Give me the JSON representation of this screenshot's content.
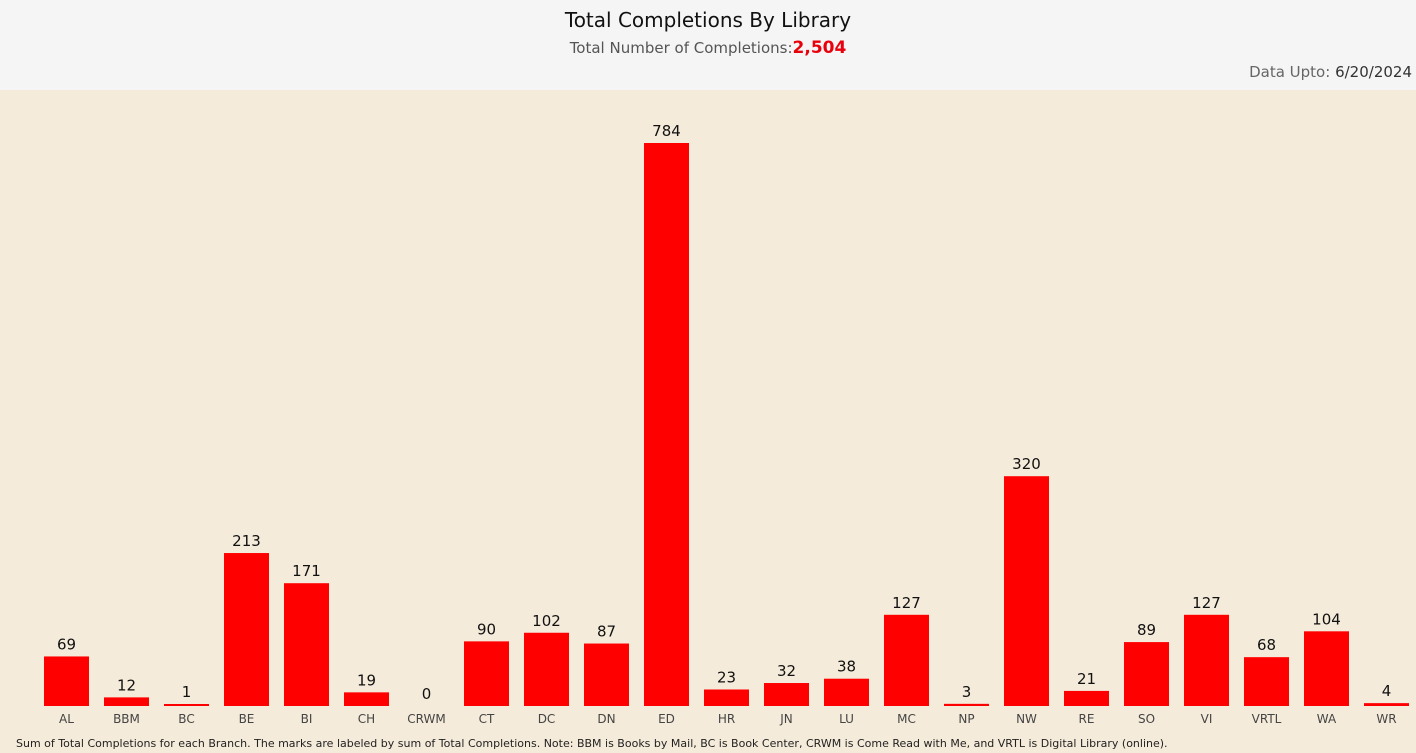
{
  "header": {
    "title": "Total Completions By Library",
    "subtitle_label": "Total Number of Completions:",
    "subtitle_value": "2,504",
    "data_upto_label": "Data Upto:",
    "data_upto_value": "6/20/2024"
  },
  "footnote": "Sum of Total Completions for each Branch.  The marks are labeled by sum of Total Completions. Note: BBM is Books by Mail, BC is Book Center, CRWM is Come Read with Me, and VRTL is Digital Library (online).",
  "colors": {
    "bar": "#ff0000",
    "header_bg": "#f5f5f5",
    "plot_bg": "#f5ebda",
    "accent": "#e8000b"
  },
  "chart_data": {
    "type": "bar",
    "categories": [
      "AL",
      "BBM",
      "BC",
      "BE",
      "BI",
      "CH",
      "CRWM",
      "CT",
      "DC",
      "DN",
      "ED",
      "HR",
      "JN",
      "LU",
      "MC",
      "NP",
      "NW",
      "RE",
      "SO",
      "VI",
      "VRTL",
      "WA",
      "WR"
    ],
    "values": [
      69,
      12,
      1,
      213,
      171,
      19,
      0,
      90,
      102,
      87,
      784,
      23,
      32,
      38,
      127,
      3,
      320,
      21,
      89,
      127,
      68,
      104,
      4
    ],
    "ylim": [
      0,
      784
    ],
    "grid": false,
    "legend": "none",
    "data_labels": true
  }
}
